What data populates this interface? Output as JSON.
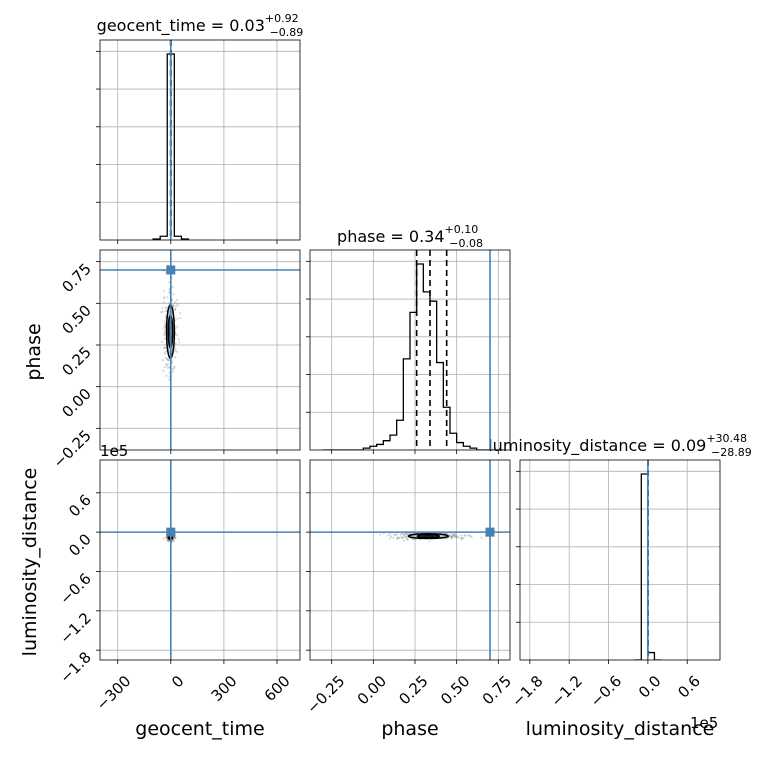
{
  "chart_data": {
    "type": "corner",
    "parameters": [
      "geocent_time",
      "phase",
      "luminosity_distance"
    ],
    "titles": [
      {
        "param": "geocent_time",
        "median": "0.03",
        "plus": "+0.92",
        "minus": "−0.89"
      },
      {
        "param": "phase",
        "median": "0.34",
        "plus": "+0.10",
        "minus": "−0.08"
      },
      {
        "param": "luminosity_distance",
        "median": "0.09",
        "plus": "+30.48",
        "minus": "−28.89"
      }
    ],
    "truths": {
      "geocent_time": 0.0,
      "phase": 0.7,
      "luminosity_distance": 0.0
    },
    "ranges": {
      "geocent_time": [
        -400,
        730
      ],
      "phase": [
        -0.38,
        0.82
      ],
      "luminosity_distance": [
        -195000,
        110000
      ]
    },
    "offset_label": "1e5",
    "ticks": {
      "geocent_time": [
        "−300",
        "0",
        "300",
        "600"
      ],
      "geocent_time_values": [
        -300,
        0,
        300,
        600
      ],
      "phase": [
        "−0.25",
        "0.00",
        "0.25",
        "0.50",
        "0.75"
      ],
      "phase_values": [
        -0.25,
        0.0,
        0.25,
        0.5,
        0.75
      ],
      "luminosity_distance": [
        "−1.8",
        "−1.2",
        "−0.6",
        "0.0",
        "0.6"
      ],
      "luminosity_distance_values": [
        -180000,
        -120000,
        -60000,
        0,
        60000
      ]
    },
    "histograms": {
      "geocent_time": {
        "edges": [
          -100,
          -60,
          -20,
          20,
          60,
          100
        ],
        "counts": [
          0.005,
          0.02,
          1.0,
          0.02,
          0.005
        ]
      },
      "phase": {
        "edges": [
          -0.3,
          -0.26,
          -0.22,
          -0.18,
          -0.14,
          -0.1,
          -0.06,
          -0.02,
          0.02,
          0.06,
          0.1,
          0.14,
          0.18,
          0.22,
          0.26,
          0.3,
          0.34,
          0.38,
          0.42,
          0.46,
          0.5,
          0.54,
          0.58,
          0.62,
          0.66,
          0.7,
          0.74,
          0.78
        ],
        "counts": [
          0.0,
          0.0,
          0.0,
          0.0,
          0.0,
          0.0,
          0.01,
          0.02,
          0.03,
          0.05,
          0.08,
          0.16,
          0.49,
          0.74,
          1.0,
          0.85,
          0.8,
          0.47,
          0.23,
          0.09,
          0.04,
          0.02,
          0.01,
          0.0,
          0.0,
          0.0,
          0.0
        ]
      },
      "luminosity_distance": {
        "edges": [
          -20000,
          -10000,
          0,
          10000,
          20000
        ],
        "counts": [
          0.0,
          1.0,
          0.04,
          0.0
        ]
      }
    },
    "quantiles": {
      "geocent_time": [
        -0.86,
        0.03,
        0.95
      ],
      "phase": [
        0.26,
        0.34,
        0.44
      ],
      "luminosity_distance": [
        -28.8,
        0.09,
        30.57
      ]
    },
    "contours": {
      "geocent_time_phase": {
        "center": [
          -2,
          0.33
        ],
        "half_width": [
          22,
          0.16
        ]
      },
      "phase_luminosity_distance": {
        "center": [
          0.33,
          -6000
        ],
        "half_width": [
          0.12,
          3500
        ]
      },
      "geocent_time_luminosity_distance": {
        "center": [
          -2,
          -8000
        ],
        "half_width": [
          12,
          3000
        ]
      }
    },
    "grid": true
  }
}
